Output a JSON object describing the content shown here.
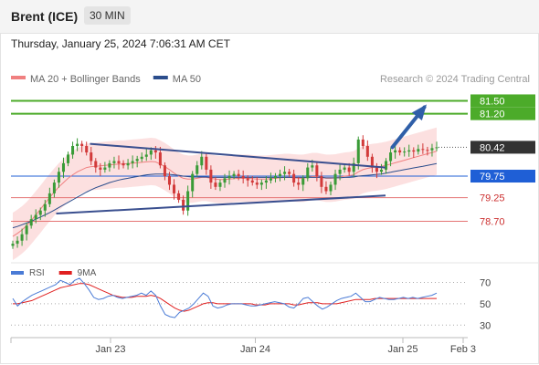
{
  "header": {
    "title": "Brent (ICE)",
    "interval": "30 MIN"
  },
  "timestamp": "Thursday, January 25, 2024 7:06:31 AM CET",
  "colors": {
    "bull": "#3a9b37",
    "bear": "#d23a3a",
    "ma20": "#f08080",
    "bands": "#f9c6c6",
    "ma50": "#2b4d8c",
    "target": "#4cab2a",
    "support_blue": "#1f5fd6",
    "level_red": "#e57373",
    "trend": "#3a4f8f",
    "arrow": "#2f5fa8",
    "rsi": "#4a7bd6",
    "rsi_ma": "#e02020",
    "last_price_box": "#333333"
  },
  "chart_data": [
    {
      "type": "candlestick",
      "legend": [
        {
          "name": "MA 20 + Bollinger Bands",
          "color": "#f08080"
        },
        {
          "name": "MA 50",
          "color": "#2b4d8c"
        }
      ],
      "credit": "Research © 2024 Trading Central",
      "x_ticks": [
        "Jan 23",
        "Jan 24",
        "Jan 25",
        "Feb 3"
      ],
      "y_range": [
        77.8,
        82.4
      ],
      "last_price": 80.42,
      "levels": [
        {
          "value": 81.5,
          "label": "81.50",
          "kind": "target"
        },
        {
          "value": 81.2,
          "label": "81.20",
          "kind": "target"
        },
        {
          "value": 80.42,
          "label": "80.42",
          "kind": "last"
        },
        {
          "value": 79.75,
          "label": "79.75",
          "kind": "pivot"
        },
        {
          "value": 79.25,
          "label": "79.25",
          "kind": "support"
        },
        {
          "value": 78.7,
          "label": "78.70",
          "kind": "support"
        }
      ],
      "close": [
        78.18,
        78.25,
        78.4,
        78.6,
        78.75,
        78.85,
        78.95,
        79.1,
        79.35,
        79.6,
        79.85,
        80.05,
        80.25,
        80.45,
        80.5,
        80.45,
        80.3,
        80.1,
        79.95,
        79.9,
        79.95,
        80.05,
        80.1,
        80.05,
        80.0,
        80.05,
        80.1,
        80.15,
        80.2,
        80.25,
        80.35,
        80.3,
        80.0,
        79.75,
        79.55,
        79.35,
        79.2,
        78.95,
        79.4,
        79.8,
        80.0,
        80.2,
        79.9,
        79.6,
        79.5,
        79.6,
        79.7,
        79.75,
        79.8,
        79.75,
        79.7,
        79.65,
        79.6,
        79.55,
        79.6,
        79.65,
        79.7,
        79.75,
        79.8,
        79.85,
        79.8,
        79.6,
        79.55,
        79.7,
        79.95,
        80.0,
        79.75,
        79.5,
        79.4,
        79.55,
        79.8,
        79.9,
        79.95,
        79.85,
        80.05,
        80.6,
        80.45,
        80.2,
        79.95,
        79.85,
        79.9,
        80.1,
        80.3,
        80.35,
        80.3,
        80.32,
        80.35,
        80.32,
        80.38,
        80.36,
        80.35,
        80.4,
        80.42
      ],
      "ma20": [
        78.35,
        78.42,
        78.5,
        78.6,
        78.72,
        78.85,
        78.98,
        79.12,
        79.25,
        79.38,
        79.5,
        79.6,
        79.7,
        79.78,
        79.85,
        79.9,
        79.95,
        79.97,
        79.98,
        79.99,
        80.0,
        80.01,
        80.02,
        80.03,
        80.03,
        80.04,
        80.05,
        80.06,
        80.07,
        80.08,
        80.09,
        80.08,
        80.03,
        79.97,
        79.9,
        79.82,
        79.75,
        79.7,
        79.68,
        79.68,
        79.7,
        79.72,
        79.72,
        79.7,
        79.68,
        79.67,
        79.67,
        79.68,
        79.69,
        79.7,
        79.7,
        79.7,
        79.69,
        79.68,
        79.68,
        79.68,
        79.69,
        79.7,
        79.71,
        79.72,
        79.72,
        79.71,
        79.7,
        79.7,
        79.72,
        79.74,
        79.74,
        79.72,
        79.7,
        79.7,
        79.71,
        79.73,
        79.75,
        79.76,
        79.78,
        79.85,
        79.9,
        79.93,
        79.95,
        79.96,
        79.98,
        80.0,
        80.03,
        80.06,
        80.09,
        80.12,
        80.15,
        80.18,
        80.21,
        80.24,
        80.27,
        80.3,
        80.33
      ],
      "ma50": [
        78.55,
        78.58,
        78.62,
        78.66,
        78.7,
        78.75,
        78.8,
        78.85,
        78.9,
        78.96,
        79.02,
        79.08,
        79.14,
        79.2,
        79.26,
        79.32,
        79.38,
        79.43,
        79.48,
        79.52,
        79.56,
        79.6,
        79.63,
        79.66,
        79.68,
        79.7,
        79.72,
        79.74,
        79.76,
        79.78,
        79.79,
        79.8,
        79.8,
        79.8,
        79.79,
        79.78,
        79.77,
        79.75,
        79.74,
        79.73,
        79.73,
        79.73,
        79.73,
        79.72,
        79.72,
        79.72,
        79.72,
        79.72,
        79.72,
        79.72,
        79.72,
        79.72,
        79.72,
        79.72,
        79.72,
        79.72,
        79.72,
        79.72,
        79.72,
        79.72,
        79.72,
        79.72,
        79.72,
        79.72,
        79.72,
        79.72,
        79.72,
        79.72,
        79.71,
        79.71,
        79.71,
        79.71,
        79.72,
        79.72,
        79.73,
        79.75,
        79.76,
        79.77,
        79.78,
        79.79,
        79.8,
        79.82,
        79.84,
        79.86,
        79.88,
        79.9,
        79.92,
        79.94,
        79.96,
        79.98,
        80.0,
        80.02,
        80.04
      ],
      "trendlines": [
        {
          "from": [
            0.173,
            80.5
          ],
          "to": [
            0.82,
            79.95
          ]
        },
        {
          "from": [
            0.099,
            78.88
          ],
          "to": [
            0.82,
            79.3
          ]
        }
      ],
      "projection": {
        "from": [
          0.835,
          80.42
        ],
        "to": [
          0.905,
          81.35
        ]
      }
    },
    {
      "type": "line",
      "legend": [
        {
          "name": "RSI",
          "color": "#4a7bd6"
        },
        {
          "name": "9MA",
          "color": "#e02020"
        }
      ],
      "y_ticks": [
        70,
        50,
        30
      ],
      "y_range": [
        20,
        85
      ],
      "rsi": [
        55,
        48,
        52,
        55,
        58,
        60,
        62,
        64,
        66,
        68,
        72,
        70,
        68,
        72,
        74,
        69,
        63,
        56,
        54,
        55,
        57,
        58,
        56,
        55,
        56,
        57,
        58,
        60,
        58,
        62,
        58,
        48,
        40,
        38,
        37,
        42,
        44,
        46,
        50,
        55,
        60,
        57,
        48,
        46,
        47,
        49,
        50,
        50,
        50,
        49,
        48,
        48,
        49,
        50,
        51,
        52,
        51,
        50,
        47,
        46,
        50,
        55,
        56,
        52,
        48,
        45,
        47,
        50,
        53,
        55,
        56,
        57,
        60,
        56,
        52,
        52,
        54,
        56,
        55,
        54,
        54,
        55,
        56,
        55,
        56,
        55,
        56,
        57,
        58,
        60
      ],
      "ma9": [
        50,
        50,
        51,
        52,
        53,
        55,
        57,
        59,
        61,
        63,
        65,
        66,
        67,
        68,
        69,
        69,
        68,
        66,
        64,
        62,
        60,
        58,
        57,
        56,
        56,
        56,
        57,
        57,
        57,
        58,
        57,
        55,
        52,
        49,
        46,
        44,
        43,
        44,
        46,
        48,
        50,
        51,
        51,
        50,
        50,
        50,
        50,
        50,
        50,
        50,
        50,
        49,
        49,
        49,
        50,
        50,
        50,
        50,
        50,
        49,
        49,
        50,
        51,
        51,
        51,
        50,
        50,
        50,
        50,
        51,
        52,
        53,
        54,
        54,
        54,
        54,
        55,
        55,
        55,
        55,
        55,
        55,
        55,
        55,
        55,
        55,
        55,
        55,
        55,
        55
      ]
    }
  ]
}
